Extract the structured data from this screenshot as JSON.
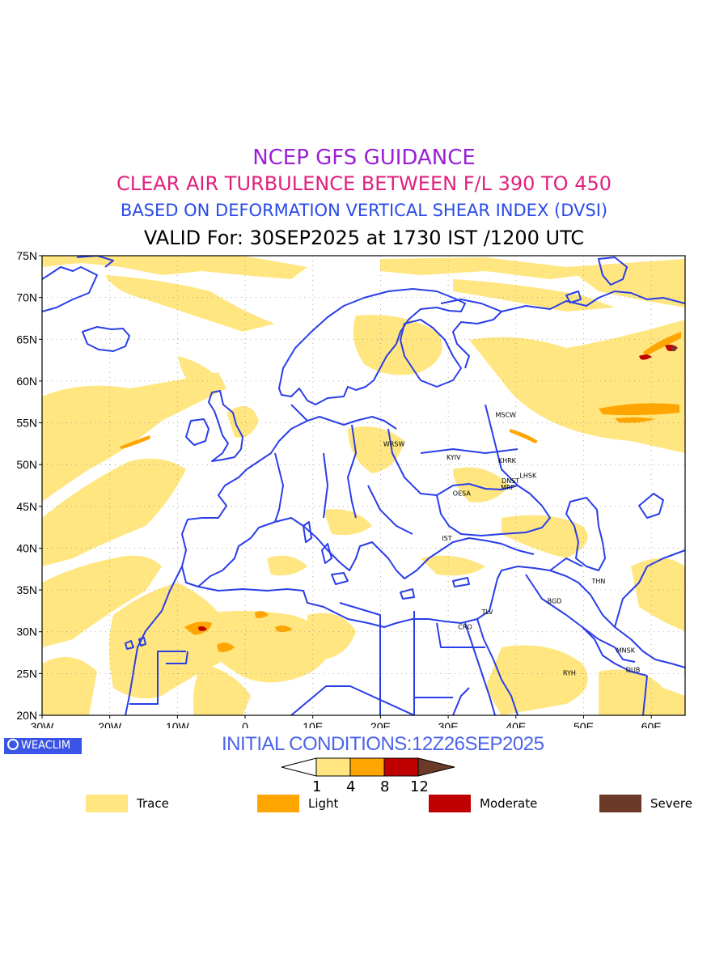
{
  "header": {
    "line1": "NCEP GFS GUIDANCE",
    "line2": "CLEAR AIR TURBULENCE BETWEEN F/L 390 TO 450",
    "line3": "BASED ON DEFORMATION VERTICAL SHEAR INDEX (DVSI)",
    "line4": "VALID For: 30SEP2025 at 1730 IST /1200 UTC"
  },
  "axes": {
    "y_ticks": [
      "75N",
      "70N",
      "65N",
      "60N",
      "55N",
      "50N",
      "45N",
      "40N",
      "35N",
      "30N",
      "25N",
      "20N"
    ],
    "x_ticks": [
      "30W",
      "20W",
      "10W",
      "0",
      "10E",
      "20E",
      "30E",
      "40E",
      "50E",
      "60E"
    ],
    "lat_range": [
      20,
      75
    ],
    "lon_range": [
      -30,
      65
    ]
  },
  "stations": [
    {
      "code": "MSCW",
      "lon": 38.5,
      "lat": 55.7
    },
    {
      "code": "WRSW",
      "lon": 22.0,
      "lat": 52.2
    },
    {
      "code": "KYIV",
      "lon": 30.8,
      "lat": 50.6
    },
    {
      "code": "KHRK",
      "lon": 38.7,
      "lat": 50.2
    },
    {
      "code": "LHSK",
      "lon": 41.8,
      "lat": 48.4
    },
    {
      "code": "DNST",
      "lon": 39.2,
      "lat": 47.8
    },
    {
      "code": "MRP",
      "lon": 38.8,
      "lat": 47.0
    },
    {
      "code": "OESA",
      "lon": 32.0,
      "lat": 46.3
    },
    {
      "code": "IST",
      "lon": 29.8,
      "lat": 40.9
    },
    {
      "code": "THN",
      "lon": 52.2,
      "lat": 35.8
    },
    {
      "code": "BGD",
      "lon": 45.7,
      "lat": 33.4
    },
    {
      "code": "TLV",
      "lon": 35.8,
      "lat": 32.1
    },
    {
      "code": "CRO",
      "lon": 32.5,
      "lat": 30.3
    },
    {
      "code": "MNSK",
      "lon": 56.2,
      "lat": 27.5
    },
    {
      "code": "DUB",
      "lon": 57.3,
      "lat": 25.2
    },
    {
      "code": "RYH",
      "lon": 47.9,
      "lat": 24.8
    }
  ],
  "footer": {
    "logo": "WEACLIM",
    "initial_conditions": "INITIAL CONDITIONS:12Z26SEP2025"
  },
  "colorbar": {
    "thresholds": [
      "1",
      "4",
      "8",
      "12"
    ],
    "colors": [
      "#ffe680",
      "#ffa500",
      "#c00000",
      "#6b3a28"
    ]
  },
  "legend": [
    {
      "label": "Trace",
      "color": "#ffe680"
    },
    {
      "label": "Light",
      "color": "#ffa500"
    },
    {
      "label": "Moderate",
      "color": "#c00000"
    },
    {
      "label": "Severe",
      "color": "#6b3a28"
    }
  ],
  "colors": {
    "coastline": "#2a3ee8",
    "trace": "#ffe680",
    "light": "#ffa500",
    "moderate": "#c00000",
    "severe": "#6b3a28"
  }
}
